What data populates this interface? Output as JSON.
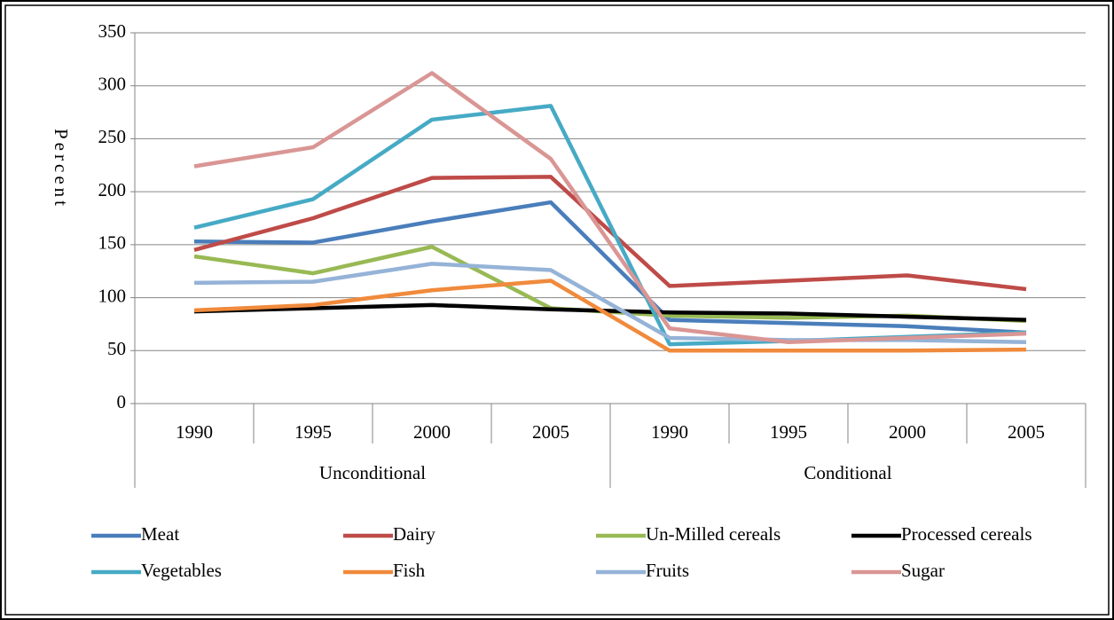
{
  "chart_data": {
    "type": "line",
    "y_label": "Percent",
    "category_groups": [
      {
        "name": "Unconditional",
        "categories": [
          "1990",
          "1995",
          "2000",
          "2005"
        ]
      },
      {
        "name": "Conditional",
        "categories": [
          "1990",
          "1995",
          "2000",
          "2005"
        ]
      }
    ],
    "series": [
      {
        "name": "Meat",
        "color": "#4a7ebb",
        "values": [
          153,
          152,
          172,
          190,
          79,
          76,
          73,
          67
        ]
      },
      {
        "name": "Dairy",
        "color": "#be4b48",
        "values": [
          145,
          175,
          213,
          214,
          111,
          116,
          121,
          108
        ]
      },
      {
        "name": "Un-Milled cereals",
        "color": "#98b954",
        "values": [
          139,
          123,
          148,
          90,
          83,
          81,
          83,
          78
        ]
      },
      {
        "name": "Processed cereals",
        "color": "#000000",
        "values": [
          87,
          90,
          93,
          89,
          86,
          85,
          82,
          79
        ]
      },
      {
        "name": "Vegetables",
        "color": "#46aac5",
        "values": [
          166,
          193,
          268,
          281,
          56,
          59,
          63,
          67
        ]
      },
      {
        "name": "Fish",
        "color": "#f08a3c",
        "values": [
          88,
          93,
          107,
          116,
          50,
          50,
          50,
          51
        ]
      },
      {
        "name": "Fruits",
        "color": "#95b3d7",
        "values": [
          114,
          115,
          132,
          126,
          62,
          60,
          60,
          58
        ]
      },
      {
        "name": "Sugar",
        "color": "#d99694",
        "values": [
          224,
          242,
          312,
          231,
          71,
          58,
          62,
          66
        ]
      }
    ],
    "ylim": [
      0,
      350
    ],
    "yticks": [
      0,
      50,
      100,
      150,
      200,
      250,
      300,
      350
    ],
    "grid": true,
    "legend": "bottom"
  }
}
